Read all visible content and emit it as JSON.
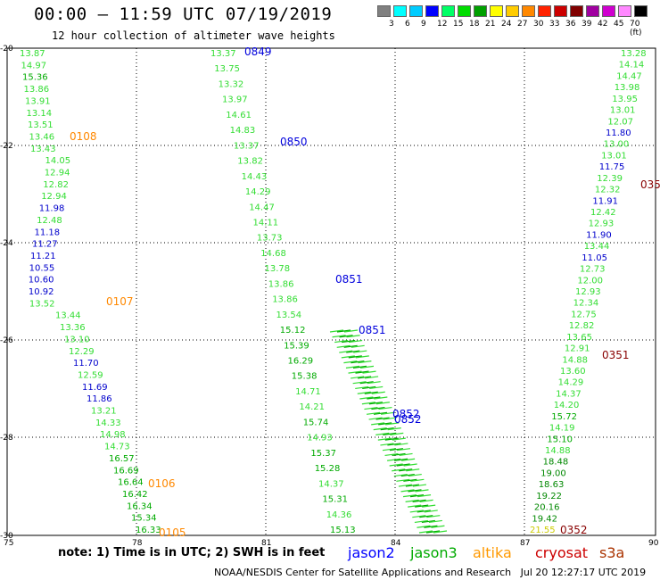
{
  "header": {
    "title": "00:00 – 11:59 UTC 07/19/2019",
    "subtitle": "12 hour collection of altimeter wave heights"
  },
  "colorbar": {
    "colors": [
      "#808080",
      "#00ffff",
      "#00ccff",
      "#0000ff",
      "#00ff66",
      "#00dd00",
      "#00a000",
      "#ffff00",
      "#ffcc00",
      "#ff8800",
      "#ff2200",
      "#cc0000",
      "#800000",
      "#a000a0",
      "#d000d0",
      "#ff88ff",
      "#000000"
    ],
    "labels": [
      "3",
      "6",
      "9",
      "12",
      "15",
      "18",
      "21",
      "24",
      "27",
      "30",
      "33",
      "36",
      "39",
      "42",
      "45",
      "70 (ft)"
    ]
  },
  "map": {
    "lon_ticks": [
      "75",
      "78",
      "81",
      "84",
      "87",
      "90"
    ],
    "lat_ticks": [
      "-20",
      "-22",
      "-24",
      "-26",
      "-28",
      "-30"
    ],
    "tracks": [
      {
        "points": [
          "13.87",
          "14.97",
          "15.36",
          "13.86",
          "13.91",
          "13.14",
          "13.51",
          "13.46",
          "13.43",
          "14.05",
          "12.94",
          "12.82",
          "12.94",
          "11.98",
          "12.48",
          "11.18",
          "11.27",
          "11.21",
          "10.55",
          "10.60",
          "10.92",
          "13.52",
          "13.44",
          "13.36",
          "13.10",
          "12.29",
          "11.70",
          "12.59",
          "11.69",
          "11.86",
          "13.21",
          "14.33",
          "14.98",
          "14.73",
          "16.57",
          "16.69",
          "16.64",
          "16.42",
          "16.34",
          "15.34",
          "16.33"
        ]
      },
      {
        "points": [
          "13.37",
          "13.75",
          "13.32",
          "13.97",
          "14.61",
          "14.83",
          "13.37",
          "13.82",
          "14.43",
          "14.29",
          "14.47",
          "14.11",
          "13.73",
          "14.68",
          "13.78",
          "13.86",
          "13.86",
          "13.54",
          "15.12",
          "15.39",
          "16.29",
          "15.38",
          "14.71",
          "14.21",
          "15.74",
          "14.93",
          "15.37",
          "15.28",
          "14.37",
          "15.31",
          "14.36",
          "15.13"
        ]
      },
      {
        "points": [
          "13.28",
          "14.14",
          "14.47",
          "13.98",
          "13.95",
          "13.01",
          "12.07",
          "11.80",
          "13.00",
          "13.01",
          "11.75",
          "12.39",
          "12.32",
          "11.91",
          "12.42",
          "12.93",
          "11.90",
          "13.44",
          "11.05",
          "12.73",
          "12.00",
          "12.93",
          "12.34",
          "12.75",
          "12.82",
          "13.65",
          "12.91",
          "14.88",
          "13.60",
          "14.29",
          "14.37",
          "14.20",
          "15.72",
          "14.19",
          "15.10",
          "14.88",
          "18.48",
          "19.00",
          "18.63",
          "19.22",
          "20.16",
          "19.42",
          "21.55"
        ]
      }
    ],
    "time_labels": [
      {
        "text": "0849",
        "color": "#0000dd"
      },
      {
        "text": "0850",
        "color": "#0000dd"
      },
      {
        "text": "0851",
        "color": "#0000dd"
      },
      {
        "text": "0851",
        "color": "#0000dd"
      },
      {
        "text": "0852",
        "color": "#0000dd"
      },
      {
        "text": "0852",
        "color": "#0000dd"
      },
      {
        "text": "0108",
        "color": "#ff8800"
      },
      {
        "text": "0107",
        "color": "#ff8800"
      },
      {
        "text": "0106",
        "color": "#ff8800"
      },
      {
        "text": "0105",
        "color": "#ff8800"
      },
      {
        "text": "035",
        "color": "#880000"
      },
      {
        "text": "0351",
        "color": "#880000"
      },
      {
        "text": "0352",
        "color": "#880000"
      }
    ]
  },
  "legend": {
    "note": "note: 1) Time is in UTC; 2) SWH is in feet",
    "satellites": [
      {
        "name": "jason2",
        "color": "#0000ff"
      },
      {
        "name": "jason3",
        "color": "#00aa00"
      },
      {
        "name": "altika",
        "color": "#ff9900"
      },
      {
        "name": "cryosat",
        "color": "#cc0000"
      },
      {
        "name": "s3a",
        "color": "#aa3300"
      }
    ]
  },
  "footer": "NOAA/NESDIS Center for Satellite Applications and Research   Jul 20 12:27:17 UTC 2019"
}
